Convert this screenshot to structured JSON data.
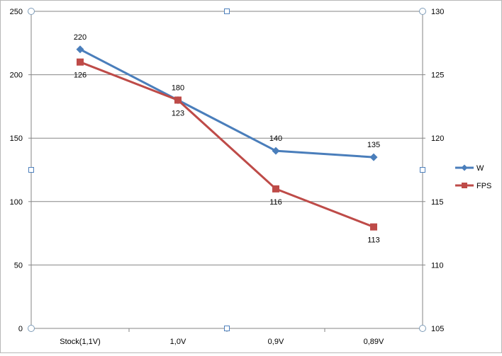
{
  "chart_data": {
    "type": "line",
    "categories": [
      "Stock(1,1V)",
      "1,0V",
      "0,9V",
      "0,89V"
    ],
    "series": [
      {
        "name": "W",
        "axis": "left",
        "color": "#4a7ebb",
        "marker": "diamond",
        "values": [
          220,
          180,
          140,
          135
        ],
        "labels_position": "above"
      },
      {
        "name": "FPS",
        "axis": "right",
        "color": "#be4b48",
        "marker": "square",
        "values": [
          126,
          123,
          116,
          113
        ],
        "labels_position": "below"
      }
    ],
    "y_left": {
      "min": 0,
      "max": 250,
      "step": 50,
      "ticks": [
        "0",
        "50",
        "100",
        "150",
        "200",
        "250"
      ]
    },
    "y_right": {
      "min": 105,
      "max": 130,
      "step": 5,
      "ticks": [
        "105",
        "110",
        "115",
        "120",
        "125",
        "130"
      ]
    },
    "gridlines": true,
    "legend_position": "right",
    "selected": true,
    "colors": {
      "gridline": "#868686",
      "axis": "#868686",
      "handle": "#4f81bd",
      "text": "#000000"
    }
  }
}
